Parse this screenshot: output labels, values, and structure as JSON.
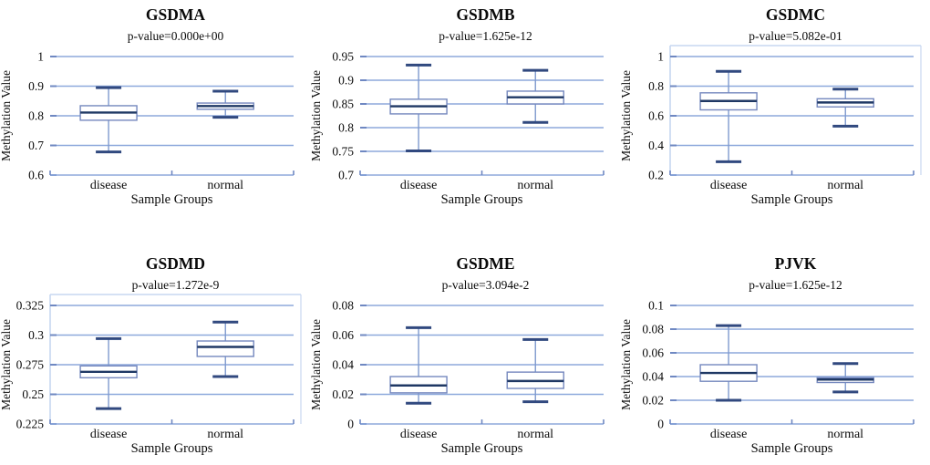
{
  "figure": {
    "background": "#ffffff",
    "grid_layout": {
      "rows": 2,
      "cols": 3
    }
  },
  "colors": {
    "gridline": "#8EA9DC",
    "axis": "#8EA9DC",
    "axis_tick": "#6F88C2",
    "frame": "#C7D7F0",
    "box_stroke": "#7588BE",
    "whisker_line": "#7E99CE",
    "whisker_cap": "#31497F",
    "median": "#1F3864",
    "text": "#0a0a0a"
  },
  "chart_data": [
    {
      "type": "boxplot",
      "title": "GSDMA",
      "subtitle": "p-value=0.000e+00",
      "ylabel": "Methylation Value",
      "xlabel": "Sample Groups",
      "categories": [
        "disease",
        "normal"
      ],
      "ylim": [
        0.6,
        1
      ],
      "ytick_values": [
        0.6,
        0.7,
        0.8,
        0.9,
        1
      ],
      "ytick_labels": [
        "0.6",
        "0.7",
        "0.8",
        "0.9",
        "1"
      ],
      "grid": true,
      "frame": false,
      "legend": "none",
      "series": [
        {
          "name": "disease",
          "whisker_low": 0.678,
          "q1": 0.785,
          "median": 0.811,
          "q3": 0.834,
          "whisker_high": 0.895
        },
        {
          "name": "normal",
          "whisker_low": 0.795,
          "q1": 0.822,
          "median": 0.833,
          "q3": 0.843,
          "whisker_high": 0.883
        }
      ]
    },
    {
      "type": "boxplot",
      "title": "GSDMB",
      "subtitle": "p-value=1.625e-12",
      "ylabel": "Methylation Value",
      "xlabel": "Sample Groups",
      "categories": [
        "disease",
        "normal"
      ],
      "ylim": [
        0.7,
        0.95
      ],
      "ytick_values": [
        0.7,
        0.75,
        0.8,
        0.85,
        0.9,
        0.95
      ],
      "ytick_labels": [
        "0.7",
        "0.75",
        "0.8",
        "0.85",
        "0.9",
        "0.95"
      ],
      "grid": true,
      "frame": false,
      "legend": "none",
      "series": [
        {
          "name": "disease",
          "whisker_low": 0.751,
          "q1": 0.829,
          "median": 0.845,
          "q3": 0.86,
          "whisker_high": 0.932
        },
        {
          "name": "normal",
          "whisker_low": 0.811,
          "q1": 0.85,
          "median": 0.864,
          "q3": 0.877,
          "whisker_high": 0.921
        }
      ]
    },
    {
      "type": "boxplot",
      "title": "GSDMC",
      "subtitle": "p-value=5.082e-01",
      "ylabel": "Methylation Value",
      "xlabel": "Sample Groups",
      "categories": [
        "disease",
        "normal"
      ],
      "ylim": [
        0.2,
        1
      ],
      "ytick_values": [
        0.2,
        0.4,
        0.6,
        0.8,
        1
      ],
      "ytick_labels": [
        "0.2",
        "0.4",
        "0.6",
        "0.8",
        "1"
      ],
      "grid": true,
      "frame": true,
      "legend": "none",
      "series": [
        {
          "name": "disease",
          "whisker_low": 0.29,
          "q1": 0.64,
          "median": 0.7,
          "q3": 0.755,
          "whisker_high": 0.9
        },
        {
          "name": "normal",
          "whisker_low": 0.53,
          "q1": 0.66,
          "median": 0.69,
          "q3": 0.715,
          "whisker_high": 0.78
        }
      ]
    },
    {
      "type": "boxplot",
      "title": "GSDMD",
      "subtitle": "p-value=1.272e-9",
      "ylabel": "Methylation Value",
      "xlabel": "Sample Groups",
      "categories": [
        "disease",
        "normal"
      ],
      "ylim": [
        0.225,
        0.325
      ],
      "ytick_values": [
        0.225,
        0.25,
        0.275,
        0.3,
        0.325
      ],
      "ytick_labels": [
        "0.225",
        "0.25",
        "0.275",
        "0.3",
        "0.325"
      ],
      "grid": true,
      "frame": true,
      "legend": "none",
      "series": [
        {
          "name": "disease",
          "whisker_low": 0.238,
          "q1": 0.264,
          "median": 0.269,
          "q3": 0.274,
          "whisker_high": 0.297
        },
        {
          "name": "normal",
          "whisker_low": 0.265,
          "q1": 0.282,
          "median": 0.29,
          "q3": 0.295,
          "whisker_high": 0.311
        }
      ]
    },
    {
      "type": "boxplot",
      "title": "GSDME",
      "subtitle": "p-value=3.094e-2",
      "ylabel": "Methylation Value",
      "xlabel": "Sample Groups",
      "categories": [
        "disease",
        "normal"
      ],
      "ylim": [
        0,
        0.08
      ],
      "ytick_values": [
        0,
        0.02,
        0.04,
        0.06,
        0.08
      ],
      "ytick_labels": [
        "0",
        "0.02",
        "0.04",
        "0.06",
        "0.08"
      ],
      "grid": true,
      "frame": false,
      "legend": "none",
      "series": [
        {
          "name": "disease",
          "whisker_low": 0.014,
          "q1": 0.021,
          "median": 0.026,
          "q3": 0.032,
          "whisker_high": 0.065
        },
        {
          "name": "normal",
          "whisker_low": 0.015,
          "q1": 0.024,
          "median": 0.029,
          "q3": 0.035,
          "whisker_high": 0.057
        }
      ]
    },
    {
      "type": "boxplot",
      "title": "PJVK",
      "subtitle": "p-value=1.625e-12",
      "ylabel": "Methylation Value",
      "xlabel": "Sample Groups",
      "categories": [
        "disease",
        "normal"
      ],
      "ylim": [
        0,
        0.1
      ],
      "ytick_values": [
        0,
        0.02,
        0.04,
        0.06,
        0.08,
        0.1
      ],
      "ytick_labels": [
        "0",
        "0.02",
        "0.04",
        "0.06",
        "0.08",
        "0.1"
      ],
      "grid": true,
      "frame": false,
      "legend": "none",
      "series": [
        {
          "name": "disease",
          "whisker_low": 0.02,
          "q1": 0.036,
          "median": 0.043,
          "q3": 0.05,
          "whisker_high": 0.083
        },
        {
          "name": "normal",
          "whisker_low": 0.027,
          "q1": 0.035,
          "median": 0.0375,
          "q3": 0.039,
          "whisker_high": 0.051
        }
      ]
    }
  ]
}
